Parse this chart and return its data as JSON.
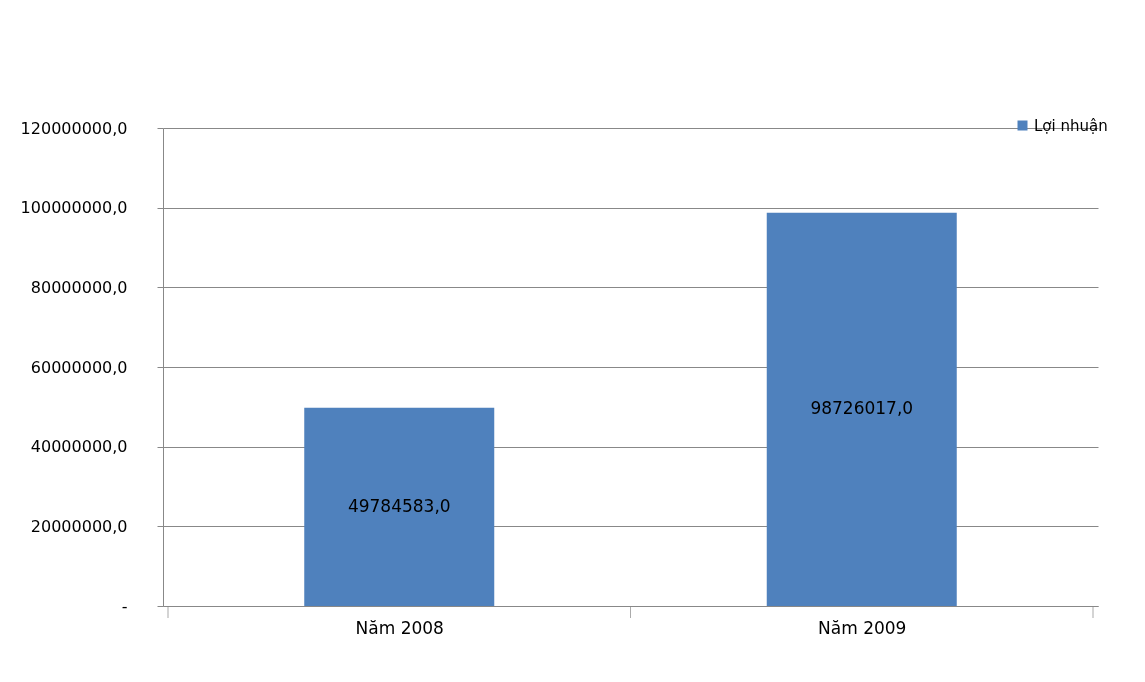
{
  "chart_data": {
    "type": "bar",
    "categories": [
      "Năm 2008",
      "Năm 2009"
    ],
    "series": [
      {
        "name": "Lợi nhuận",
        "color": "#4f81bd",
        "values": [
          49784583,
          98726017
        ]
      }
    ],
    "value_labels": [
      "49784583,0",
      "98726017,0"
    ],
    "ylim": [
      0,
      120000000
    ],
    "yticks": [
      {
        "value": 0,
        "label": "-"
      },
      {
        "value": 20000000,
        "label": "20000000,0"
      },
      {
        "value": 40000000,
        "label": "40000000,0"
      },
      {
        "value": 60000000,
        "label": "60000000,0"
      },
      {
        "value": 80000000,
        "label": "80000000,0"
      },
      {
        "value": 100000000,
        "label": "100000000,0"
      },
      {
        "value": 120000000,
        "label": "120000000,0"
      }
    ],
    "grid": "y",
    "legend": "top right"
  }
}
